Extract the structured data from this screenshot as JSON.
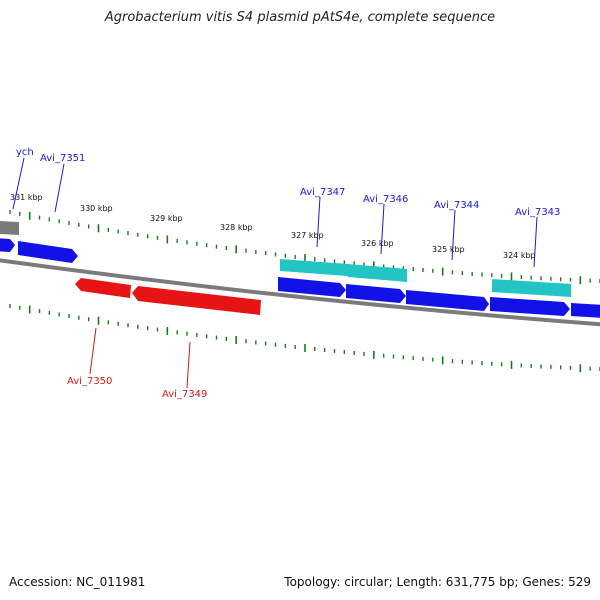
{
  "header": {
    "title": "Agrobacterium vitis S4 plasmid pAtS4e, complete sequence"
  },
  "footer": {
    "accession": "Accession: NC_011981",
    "summary": "Topology: circular; Length: 631,775 bp; Genes: 529"
  },
  "colors": {
    "forward_gene": "#1010e0",
    "reverse_gene": "#e01010",
    "rna_gene": "#20c0c0",
    "other_gene": "#808080",
    "backbone": "#808080",
    "tick": "#1a7a1a",
    "forward_label": "#1a1acc",
    "reverse_label": "#cc1a1a"
  },
  "scale": {
    "tick_labels": [
      "331 kbp",
      "330 kbp",
      "329 kbp",
      "328 kbp",
      "327 kbp",
      "326 kbp",
      "325 kbp",
      "324 kbp"
    ]
  },
  "gene_labels": {
    "forward": [
      "ych",
      "Avi_7351",
      "Avi_7347",
      "Avi_7346",
      "Avi_7344",
      "Avi_7343"
    ],
    "reverse": [
      "Avi_7350",
      "Avi_7349"
    ]
  }
}
